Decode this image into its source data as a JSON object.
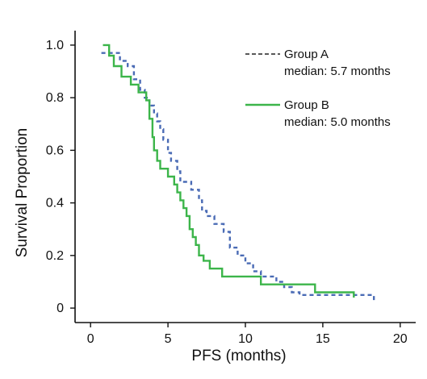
{
  "chart_data": {
    "type": "line",
    "xlabel": "PFS (months)",
    "ylabel": "Survival Proportion",
    "xlim": [
      -1,
      21
    ],
    "ylim": [
      -0.055,
      1.055
    ],
    "x_ticks": [
      0,
      5,
      10,
      15,
      20
    ],
    "x_tick_labels": [
      "0",
      "5",
      "10",
      "15",
      "20"
    ],
    "y_ticks": [
      0,
      0.2,
      0.4,
      0.6,
      0.8,
      1.0
    ],
    "y_tick_labels": [
      "0",
      "0.2",
      "0.4",
      "0.6",
      "0.8",
      "1.0"
    ],
    "grid": false,
    "legend_position": "top-right",
    "series": [
      {
        "name": "Group A",
        "median_label": "median: 5.7 months",
        "color": "#4a6bb5",
        "line_style": "dashed",
        "x": [
          0.7,
          1.4,
          1.9,
          2.4,
          2.8,
          3.2,
          3.5,
          3.8,
          4.1,
          4.3,
          4.5,
          4.7,
          5.0,
          5.2,
          5.6,
          5.8,
          6.0,
          6.5,
          7.0,
          7.2,
          7.5,
          8.0,
          8.6,
          9.0,
          9.5,
          10.0,
          10.5,
          11.0,
          12.0,
          12.5,
          13.0,
          13.5,
          14.0,
          18.3
        ],
        "y": [
          0.97,
          0.97,
          0.94,
          0.92,
          0.87,
          0.83,
          0.8,
          0.77,
          0.74,
          0.71,
          0.68,
          0.64,
          0.59,
          0.56,
          0.52,
          0.48,
          0.48,
          0.45,
          0.41,
          0.37,
          0.35,
          0.32,
          0.29,
          0.23,
          0.2,
          0.17,
          0.14,
          0.12,
          0.1,
          0.08,
          0.06,
          0.05,
          0.05,
          0.03
        ]
      },
      {
        "name": "Group B",
        "median_label": "median: 5.0 months",
        "color": "#3cb54a",
        "line_style": "solid",
        "x": [
          0.8,
          1.2,
          1.5,
          2.0,
          2.6,
          3.1,
          3.6,
          3.8,
          4.0,
          4.1,
          4.3,
          4.5,
          5.0,
          5.4,
          5.6,
          5.8,
          6.0,
          6.2,
          6.4,
          6.6,
          6.8,
          7.0,
          7.3,
          7.7,
          8.5,
          10.5,
          11.0,
          14.5,
          17.0
        ],
        "y": [
          1.0,
          0.96,
          0.92,
          0.88,
          0.85,
          0.82,
          0.79,
          0.72,
          0.65,
          0.6,
          0.56,
          0.53,
          0.5,
          0.47,
          0.44,
          0.41,
          0.38,
          0.35,
          0.3,
          0.27,
          0.24,
          0.2,
          0.18,
          0.15,
          0.12,
          0.12,
          0.09,
          0.06,
          0.04
        ]
      }
    ]
  }
}
